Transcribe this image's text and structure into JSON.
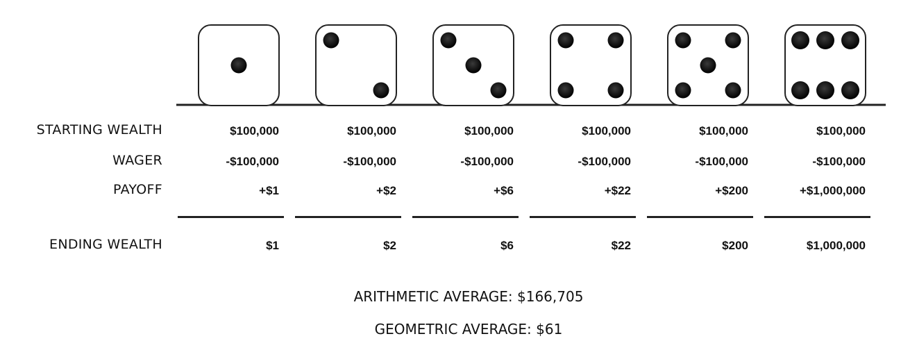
{
  "dice_faces": [
    1,
    2,
    3,
    4,
    5,
    6
  ],
  "row_labels": {
    "starting": "STARTING WEALTH",
    "wager": "WAGER",
    "payoff": "PAYOFF",
    "ending": "ENDING WEALTH"
  },
  "columns": [
    {
      "starting": "$100,000",
      "wager": "-$100,000",
      "payoff": "+$1",
      "ending": "$1"
    },
    {
      "starting": "$100,000",
      "wager": "-$100,000",
      "payoff": "+$2",
      "ending": "$2"
    },
    {
      "starting": "$100,000",
      "wager": "-$100,000",
      "payoff": "+$6",
      "ending": "$6"
    },
    {
      "starting": "$100,000",
      "wager": "-$100,000",
      "payoff": "+$22",
      "ending": "$22"
    },
    {
      "starting": "$100,000",
      "wager": "-$100,000",
      "payoff": "+$200",
      "ending": "$200"
    },
    {
      "starting": "$100,000",
      "wager": "-$100,000",
      "payoff": "+$1,000,000",
      "ending": "$1,000,000"
    }
  ],
  "averages": {
    "arithmetic": "ARITHMETIC AVERAGE: $166,705",
    "geometric": "GEOMETRIC AVERAGE: $61"
  }
}
